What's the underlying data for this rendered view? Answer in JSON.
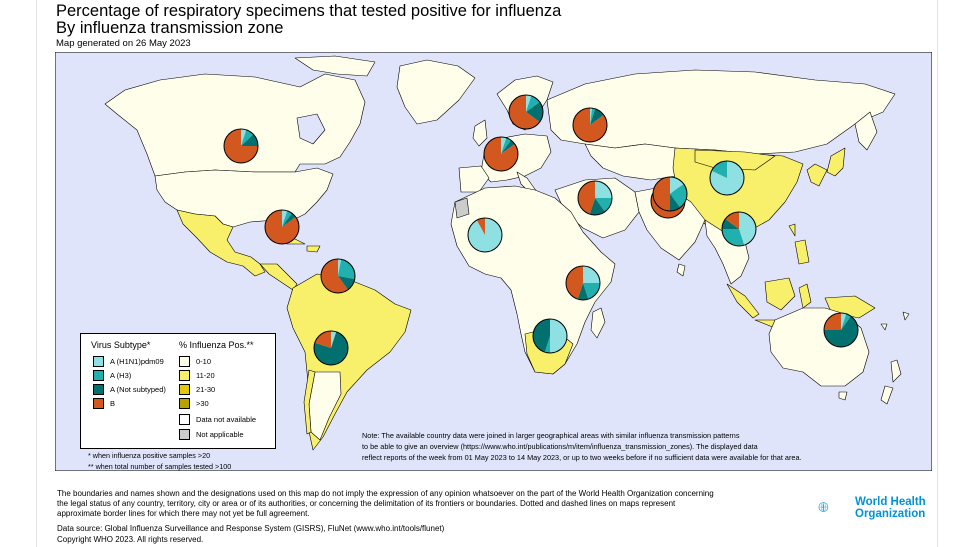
{
  "header": {
    "title_line1": "Percentage of respiratory specimens that tested positive for influenza",
    "title_line2": "By influenza transmission zone",
    "generated": "Map generated on 26 May 2023"
  },
  "colors": {
    "ocean": "#e0e4fb",
    "pos_0_10": "#fffeea",
    "pos_11_20": "#f8ef6b",
    "pos_21_30": "#e3c80e",
    "pos_gt30": "#b9a200",
    "not_available": "#ffffff",
    "not_applicable": "#cccccc",
    "h1n1": "#8fe0e2",
    "h3": "#21b0ad",
    "a_not_subtyped": "#037070",
    "b": "#d2581f"
  },
  "legend": {
    "subtype_title": "Virus Subtype*",
    "subtypes": [
      "A (H1N1)pdm09",
      "A (H3)",
      "A (Not subtyped)",
      "B"
    ],
    "pos_title": "% Influenza Pos.**",
    "pos_classes": [
      "0-10",
      "11-20",
      "21-30",
      ">30",
      "Data not available",
      "Not applicable"
    ]
  },
  "footnotes": {
    "f1": "* when influenza positive samples >20",
    "f2": "** when total number of samples tested >100"
  },
  "note": {
    "line1": "Note: The available country data were joined in larger geographical areas with similar influenza transmission patterns",
    "line2": "to be able to give an overview (https://www.who.int/publications/m/item/influenza_transmission_zones). The displayed data",
    "line3": "reflect reports of the week from 01 May 2023 to 14 May 2023, or up to two weeks before if no sufficient data were available for that area."
  },
  "disclaimer": "The boundaries and names shown and the designations used on this map do not imply the expression of any opinion whatsoever on the part of the World Health Organization concerning the legal status of any country, territory, city or area or of its authorities, or concerning the delimitation of its frontiers or boundaries. Dotted and dashed lines on maps represent approximate border lines for which there may not yet be full agreement.",
  "source": {
    "line1": "Data source: Global Influenza Surveillance and Response System (GISRS), FluNet (www.who.int/tools/flunet)",
    "line2": "Copyright WHO 2023. All rights reserved."
  },
  "logo": {
    "line1": "World Health",
    "line2": "Organization"
  },
  "pies": [
    {
      "zone": "North America",
      "h1n1": 0.05,
      "h3": 0.08,
      "a_ns": 0.12,
      "b": 0.75
    },
    {
      "zone": "Central America and Caribbean",
      "h1n1": 0.05,
      "h3": 0.05,
      "a_ns": 0.05,
      "b": 0.85
    },
    {
      "zone": "Tropical South America",
      "h1n1": 0.03,
      "h3": 0.25,
      "a_ns": 0.12,
      "b": 0.6
    },
    {
      "zone": "Temperate South America",
      "h1n1": 0.05,
      "h3": 0.0,
      "a_ns": 0.75,
      "b": 0.2
    },
    {
      "zone": "Northern Europe",
      "h1n1": 0.05,
      "h3": 0.1,
      "a_ns": 0.2,
      "b": 0.65
    },
    {
      "zone": "Eastern Europe",
      "h1n1": 0.02,
      "h3": 0.03,
      "a_ns": 0.1,
      "b": 0.85
    },
    {
      "zone": "South West Europe",
      "h1n1": 0.05,
      "h3": 0.05,
      "a_ns": 0.05,
      "b": 0.85
    },
    {
      "zone": "Western Africa",
      "h1n1": 0.92,
      "h3": 0.0,
      "a_ns": 0.0,
      "b": 0.08
    },
    {
      "zone": "Northern Africa / Western Asia",
      "h1n1": 0.25,
      "h3": 0.15,
      "a_ns": 0.15,
      "b": 0.45
    },
    {
      "zone": "Southern Asia",
      "h1n1": 0.04,
      "h3": 0.03,
      "a_ns": 0.1,
      "b": 0.83
    },
    {
      "zone": "Central Asia",
      "h1n1": 0.15,
      "h3": 0.25,
      "a_ns": 0.1,
      "b": 0.5
    },
    {
      "zone": "Eastern Asia",
      "h1n1": 0.82,
      "h3": 0.18,
      "a_ns": 0.0,
      "b": 0.0
    },
    {
      "zone": "South East Asia",
      "h1n1": 0.45,
      "h3": 0.3,
      "a_ns": 0.1,
      "b": 0.15
    },
    {
      "zone": "Eastern Africa",
      "h1n1": 0.25,
      "h3": 0.2,
      "a_ns": 0.1,
      "b": 0.45
    },
    {
      "zone": "Southern Africa",
      "h1n1": 0.5,
      "h3": 0.05,
      "a_ns": 0.45,
      "b": 0.0
    },
    {
      "zone": "Oceania",
      "h1n1": 0.05,
      "h3": 0.05,
      "a_ns": 0.65,
      "b": 0.25
    }
  ]
}
